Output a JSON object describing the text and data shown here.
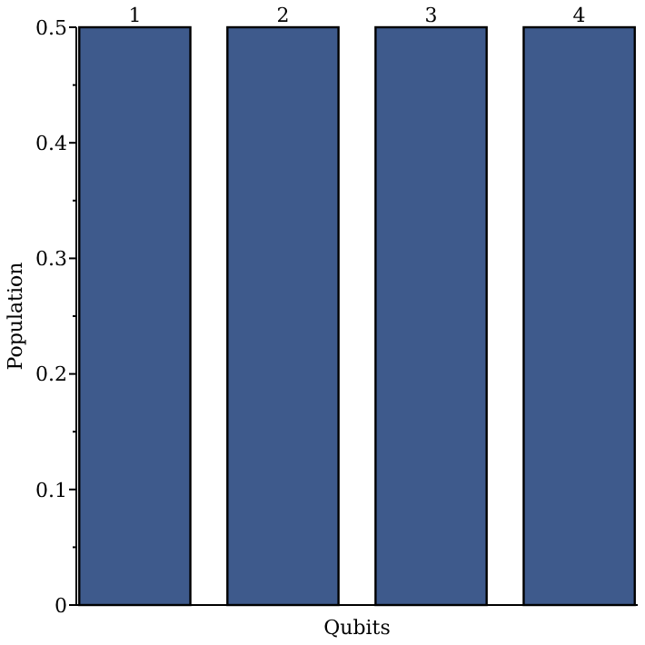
{
  "chart_data": {
    "type": "bar",
    "categories": [
      "1",
      "2",
      "3",
      "4"
    ],
    "values": [
      0.5,
      0.5,
      0.5,
      0.5
    ],
    "color": "#3e5a8c",
    "xlabel": "Qubits",
    "ylabel": "Population",
    "ylim": [
      0,
      0.5
    ],
    "yticks": [
      0,
      {
        "value": 0.05,
        "label": null
      },
      0.1,
      {
        "value": 0.15,
        "label": null
      },
      0.2,
      {
        "value": 0.25,
        "label": null
      },
      0.3,
      {
        "value": 0.35,
        "label": null
      },
      0.4,
      {
        "value": 0.45,
        "label": null
      },
      0.5
    ],
    "grid": false
  }
}
